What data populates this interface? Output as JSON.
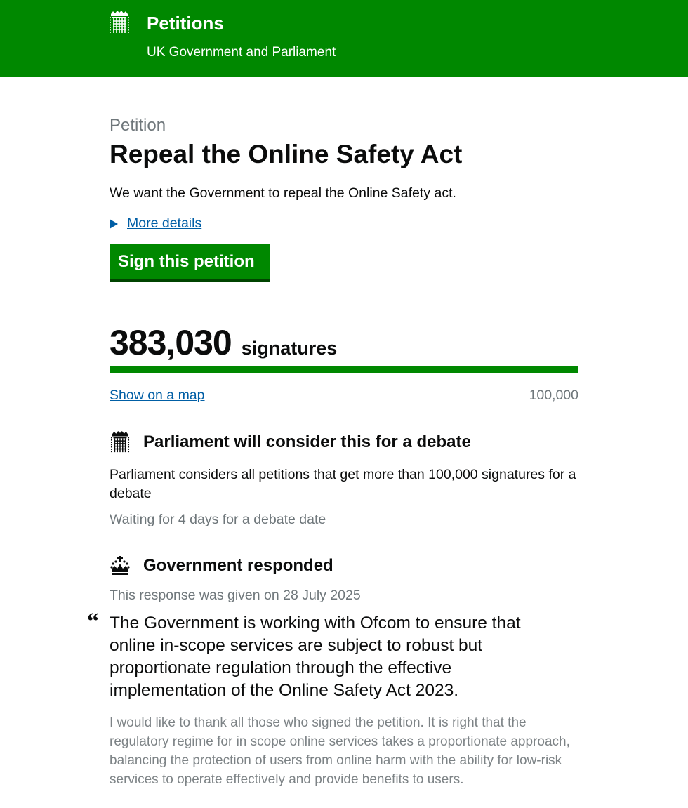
{
  "header": {
    "title": "Petitions",
    "subtitle": "UK Government and Parliament",
    "logo": "portcullis-icon"
  },
  "petition": {
    "caption": "Petition",
    "title": "Repeal the Online Safety Act",
    "summary": "We want the Government to repeal the Online Safety act.",
    "more_details": "More details",
    "sign_button": "Sign this petition",
    "signature_count": "383,030",
    "signature_label": "signatures",
    "progress_percent": 100,
    "show_map": "Show on a map",
    "threshold": "100,000"
  },
  "debate": {
    "icon": "portcullis-icon",
    "heading": "Parliament will consider this for a debate",
    "text": "Parliament considers all petitions that get more than 100,000 signatures for a debate",
    "status": "Waiting for 4 days for a debate date"
  },
  "response": {
    "icon": "crown-icon",
    "heading": "Government responded",
    "date": "This response was given on 28 July 2025",
    "quote_mark": "“",
    "summary": "The Government is working with Ofcom to ensure that online in-scope services are subject to robust but proportionate regulation through the effective implementation of the Online Safety Act 2023.",
    "body": "I would like to thank all those who signed the petition. It is right that the regulatory regime for in scope online services takes a proportionate approach, balancing the protection of users from online harm with the ability for low-risk services to operate effectively and provide benefits to users."
  },
  "colors": {
    "brand": "#008800",
    "link": "#005ea5",
    "secondary_text": "#6f777b"
  }
}
